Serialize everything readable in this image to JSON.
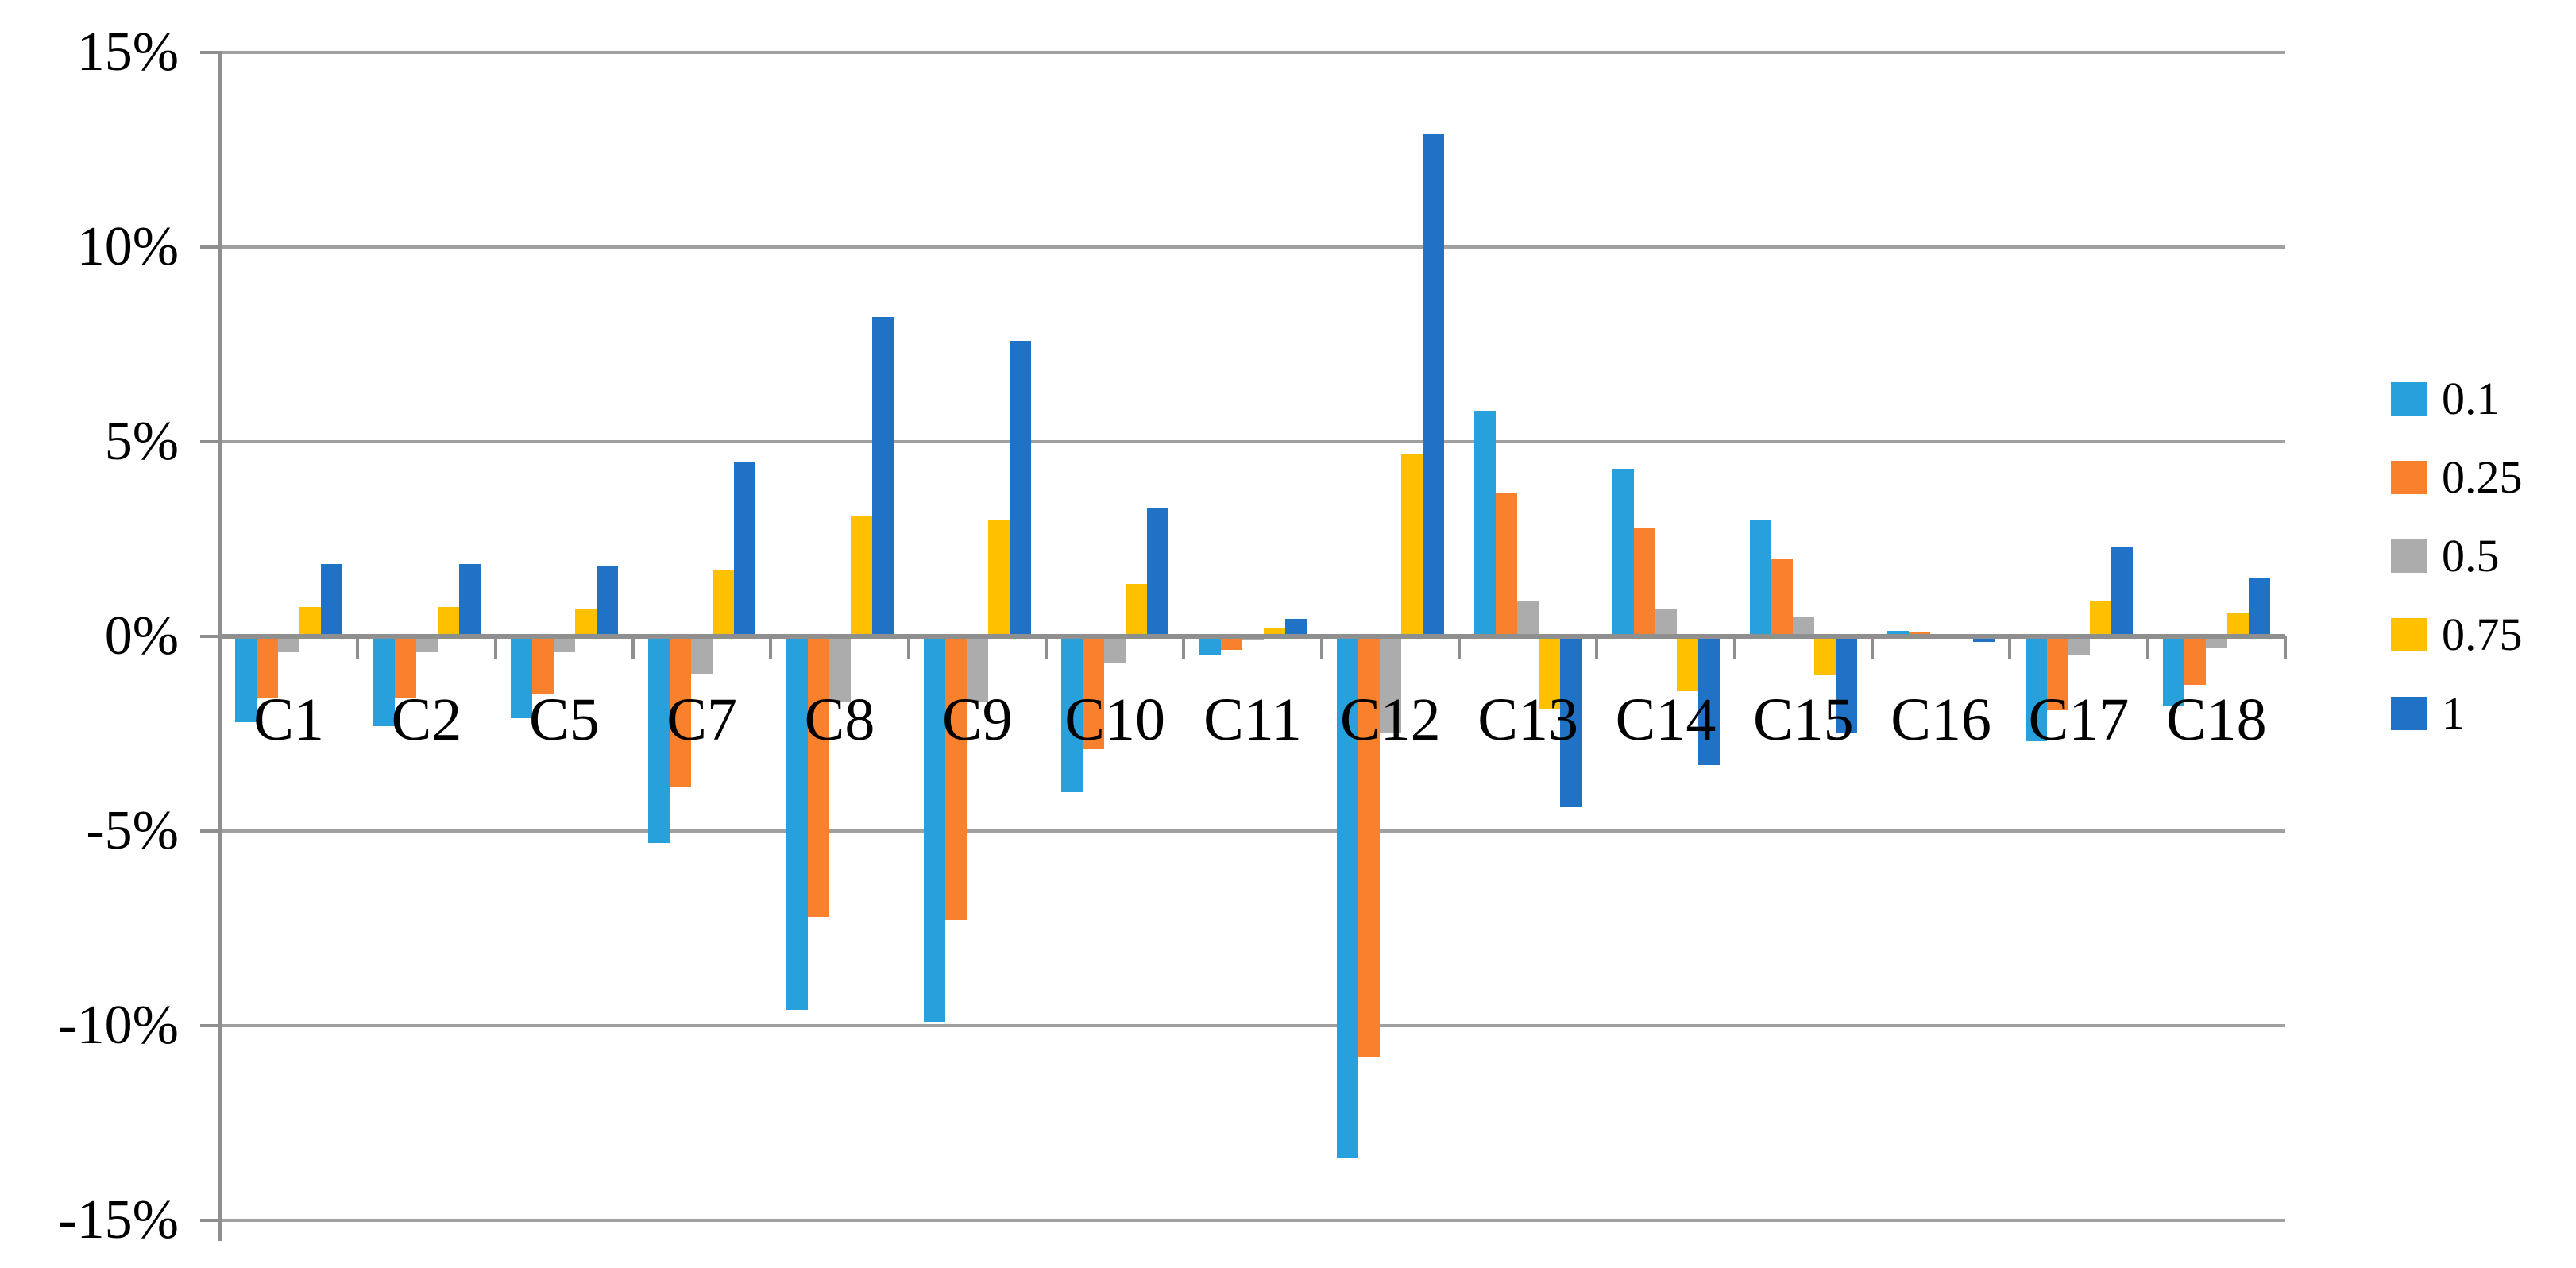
{
  "chart_data": {
    "type": "bar",
    "title": "",
    "xlabel": "",
    "ylabel": "",
    "ylim": [
      -15,
      15
    ],
    "ytick_step": 5,
    "ytick_labels": [
      "15%",
      "10%",
      "5%",
      "0%",
      "-5%",
      "-10%",
      "-15%"
    ],
    "ytick_values": [
      15,
      10,
      5,
      0,
      -5,
      -10,
      -15
    ],
    "grid": true,
    "legend_position": "right",
    "categories": [
      "C1",
      "C2",
      "C5",
      "C7",
      "C8",
      "C9",
      "C10",
      "C11",
      "C12",
      "C13",
      "C14",
      "C15",
      "C16",
      "C17",
      "C18"
    ],
    "series": [
      {
        "name": "0.1",
        "color": "#27A0DB",
        "values": [
          -2.2,
          -2.3,
          -2.1,
          -5.3,
          -9.6,
          -9.9,
          -4.0,
          -0.5,
          -13.4,
          5.8,
          4.3,
          3.0,
          0.15,
          -2.7,
          -1.8
        ]
      },
      {
        "name": "0.25",
        "color": "#F9812D",
        "values": [
          -1.6,
          -1.6,
          -1.5,
          -3.85,
          -7.2,
          -7.3,
          -2.9,
          -0.35,
          -10.8,
          3.7,
          2.8,
          2.0,
          0.1,
          -1.9,
          -1.25
        ]
      },
      {
        "name": "0.5",
        "color": "#ACACAC",
        "values": [
          -0.4,
          -0.4,
          -0.4,
          -0.95,
          -1.7,
          -1.7,
          -0.7,
          -0.1,
          -2.5,
          0.9,
          0.7,
          0.5,
          0.0,
          -0.5,
          -0.3
        ]
      },
      {
        "name": "0.75",
        "color": "#FFC000",
        "values": [
          0.75,
          0.75,
          0.7,
          1.7,
          3.1,
          3.0,
          1.35,
          0.2,
          4.7,
          -1.85,
          -1.4,
          -1.0,
          0.0,
          0.9,
          0.6
        ]
      },
      {
        "name": "1",
        "color": "#1F72C6",
        "values": [
          1.85,
          1.85,
          1.8,
          4.5,
          8.2,
          7.6,
          3.3,
          0.45,
          12.9,
          -4.4,
          -3.3,
          -2.5,
          -0.15,
          2.3,
          1.5
        ]
      }
    ]
  },
  "colors": {
    "background": "#FFFFFF",
    "gridline": "#A0A0A0",
    "axis": "#8F8F8F",
    "text": "#000000"
  }
}
